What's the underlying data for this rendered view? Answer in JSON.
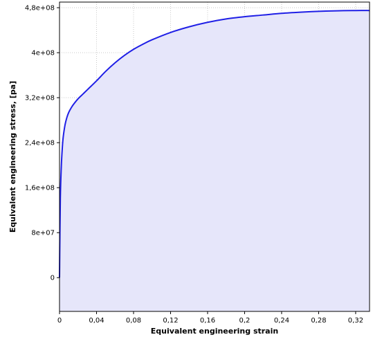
{
  "chart_data": {
    "type": "area",
    "xlabel": "Equivalent engineering strain",
    "ylabel": "Equivalent engineering stress, [pa]",
    "xlim": [
      0,
      0.335
    ],
    "ylim": [
      -60000000,
      490000000
    ],
    "grid": true,
    "x_ticks": [
      {
        "value": 0,
        "label": "0"
      },
      {
        "value": 0.04,
        "label": "0,04"
      },
      {
        "value": 0.08,
        "label": "0,08"
      },
      {
        "value": 0.12,
        "label": "0,12"
      },
      {
        "value": 0.16,
        "label": "0,16"
      },
      {
        "value": 0.2,
        "label": "0,2"
      },
      {
        "value": 0.24,
        "label": "0,24"
      },
      {
        "value": 0.28,
        "label": "0,28"
      },
      {
        "value": 0.32,
        "label": "0,32"
      }
    ],
    "y_ticks": [
      {
        "value": 0,
        "label": "0"
      },
      {
        "value": 80000000,
        "label": "8e+07"
      },
      {
        "value": 160000000,
        "label": "1,6e+08"
      },
      {
        "value": 240000000,
        "label": "2,4e+08"
      },
      {
        "value": 320000000,
        "label": "3,2e+08"
      },
      {
        "value": 400000000,
        "label": "4e+08"
      },
      {
        "value": 480000000,
        "label": "4,8e+08"
      }
    ],
    "series": [
      {
        "color": "#1f1fe6",
        "fill": "#e6e6fa",
        "x": [
          0,
          0.0005,
          0.001,
          0.002,
          0.003,
          0.004,
          0.006,
          0.008,
          0.01,
          0.013,
          0.016,
          0.02,
          0.025,
          0.03,
          0.04,
          0.05,
          0.06,
          0.07,
          0.08,
          0.09,
          0.1,
          0.12,
          0.14,
          0.16,
          0.18,
          0.2,
          0.22,
          0.24,
          0.26,
          0.28,
          0.3,
          0.32,
          0.335
        ],
        "y": [
          0,
          90000000,
          150000000,
          200000000,
          230000000,
          250000000,
          272000000,
          285000000,
          294000000,
          303000000,
          310000000,
          318000000,
          326000000,
          334000000,
          350000000,
          367000000,
          382000000,
          395000000,
          406000000,
          415000000,
          423000000,
          436000000,
          446000000,
          454000000,
          460000000,
          464000000,
          467000000,
          470000000,
          472000000,
          473500000,
          474500000,
          475000000,
          475000000
        ]
      }
    ]
  }
}
